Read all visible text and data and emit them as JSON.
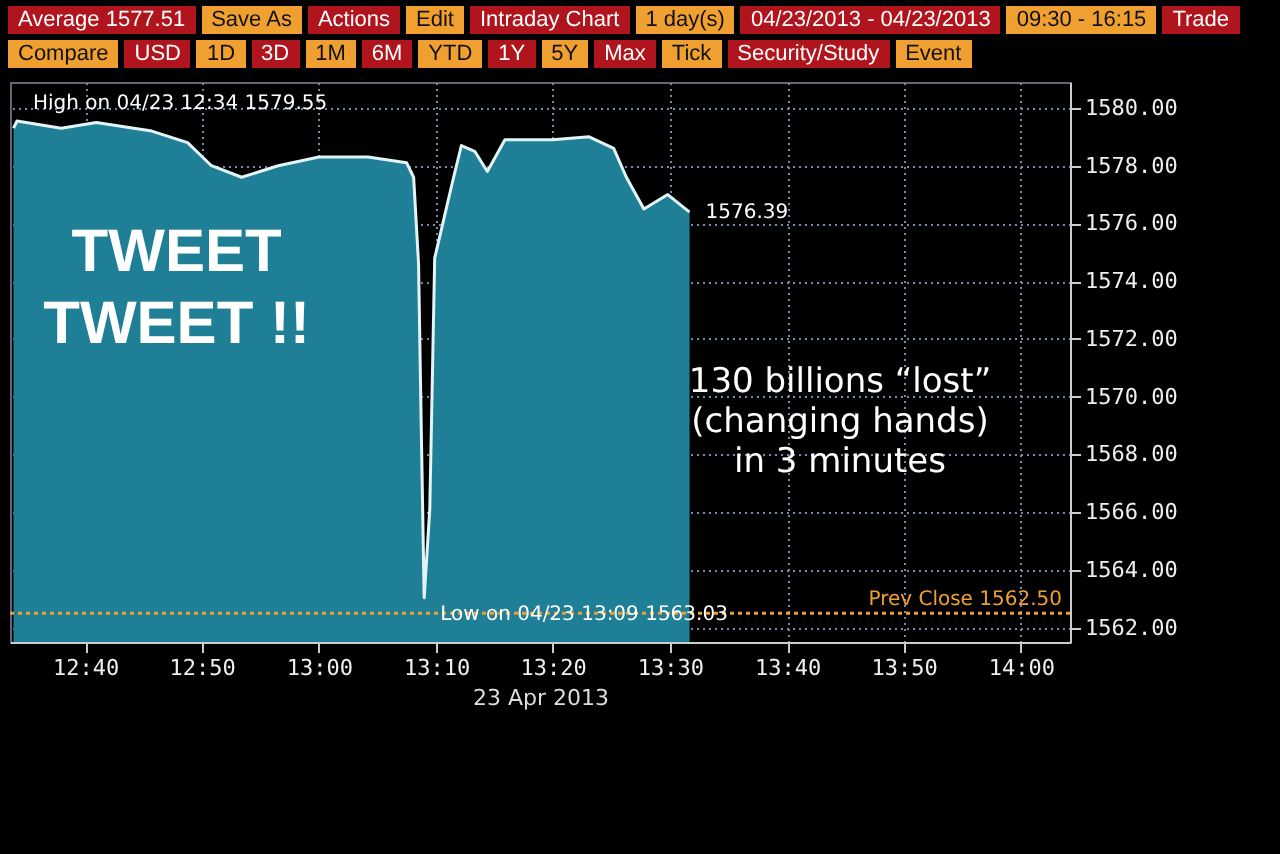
{
  "chart_data": {
    "type": "area",
    "xlabel": "23 Apr 2013",
    "x": [
      12.565,
      12.57,
      12.633,
      12.683,
      12.762,
      12.813,
      12.847,
      12.89,
      12.942,
      13.0,
      13.07,
      13.125,
      13.135,
      13.142,
      13.146,
      13.15,
      13.158,
      13.165,
      13.19,
      13.203,
      13.222,
      13.24,
      13.265,
      13.333,
      13.385,
      13.42,
      13.438,
      13.463,
      13.497,
      13.528
    ],
    "series": [
      {
        "color": "#1f7f96",
        "values": [
          1579.3,
          1579.55,
          1579.3,
          1579.5,
          1579.2,
          1578.8,
          1578.0,
          1577.6,
          1578.0,
          1578.3,
          1578.3,
          1578.1,
          1577.6,
          1574.6,
          1568.7,
          1563.03,
          1566.1,
          1574.8,
          1577.4,
          1578.7,
          1578.5,
          1577.8,
          1578.9,
          1578.9,
          1579.0,
          1578.6,
          1577.6,
          1576.5,
          1577.0,
          1576.39
        ]
      }
    ],
    "xlim": [
      12.56,
      14.07
    ],
    "xticks": [
      {
        "value": 12.667,
        "label": "12:40"
      },
      {
        "value": 12.833,
        "label": "12:50"
      },
      {
        "value": 13.0,
        "label": "13:00"
      },
      {
        "value": 13.167,
        "label": "13:10"
      },
      {
        "value": 13.333,
        "label": "13:20"
      },
      {
        "value": 13.5,
        "label": "13:30"
      },
      {
        "value": 13.667,
        "label": "13:40"
      },
      {
        "value": 13.833,
        "label": "13:50"
      },
      {
        "value": 14.0,
        "label": "14:00"
      }
    ],
    "ylim": [
      1561.5,
      1580.9
    ],
    "yticks": [
      {
        "value": 1562,
        "label": "1562.00"
      },
      {
        "value": 1564,
        "label": "1564.00"
      },
      {
        "value": 1566,
        "label": "1566.00"
      },
      {
        "value": 1568,
        "label": "1568.00"
      },
      {
        "value": 1570,
        "label": "1570.00"
      },
      {
        "value": 1572,
        "label": "1572.00"
      },
      {
        "value": 1574,
        "label": "1574.00"
      },
      {
        "value": 1576,
        "label": "1576.00"
      },
      {
        "value": 1578,
        "label": "1578.00"
      },
      {
        "value": 1580,
        "label": "1580.00"
      }
    ],
    "grid": true,
    "ref_lines": [
      {
        "axis": "y",
        "value": 1562.5,
        "label": "Prev Close 1562.50",
        "color": "#f0a030",
        "line_style": "dotted"
      }
    ],
    "annotations": [
      {
        "text": "TWEET\nTWEET !!",
        "x": 13.125,
        "y": 1578.1
      },
      "130 billions “lost”\n(changing hands)\nin 3 minutes",
      {
        "text": "High on 04/23 12:34 1579.55",
        "x": 12.57,
        "y": 1579.55
      },
      {
        "text": "Low on 04/23 13:09 1563.03",
        "x": 13.15,
        "y": 1563.03
      },
      {
        "text": "1576.39",
        "x": 13.528,
        "y": 1576.39
      },
      "Average 1577.51",
      "Save As",
      "Actions",
      "Edit",
      "Intraday Chart",
      "1 day(s)",
      "04/23/2013 - 04/23/2013",
      "09:30 - 16:15",
      "Trade",
      "Compare",
      "USD",
      "1D",
      "3D",
      "1M",
      "6M",
      "YTD",
      "1Y",
      "5Y",
      "Max",
      "Tick",
      "Security/Study",
      "Event"
    ]
  }
}
